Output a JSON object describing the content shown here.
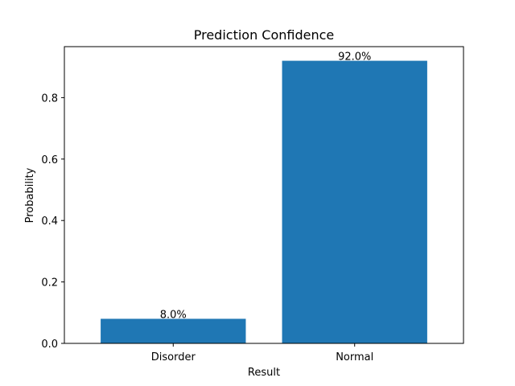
{
  "chart_data": {
    "type": "bar",
    "title": "Prediction Confidence",
    "xlabel": "Result",
    "ylabel": "Probability",
    "categories": [
      "Disorder",
      "Normal"
    ],
    "values": [
      0.08,
      0.92
    ],
    "data_labels": [
      "8.0%",
      "92.0%"
    ],
    "ylim": [
      0,
      0.966
    ],
    "yticks": [
      0.0,
      0.2,
      0.4,
      0.6,
      0.8
    ],
    "ytick_labels": [
      "0.0",
      "0.2",
      "0.4",
      "0.6",
      "0.8"
    ],
    "bar_color": "#1f77b4",
    "grid": false,
    "legend": "none"
  }
}
